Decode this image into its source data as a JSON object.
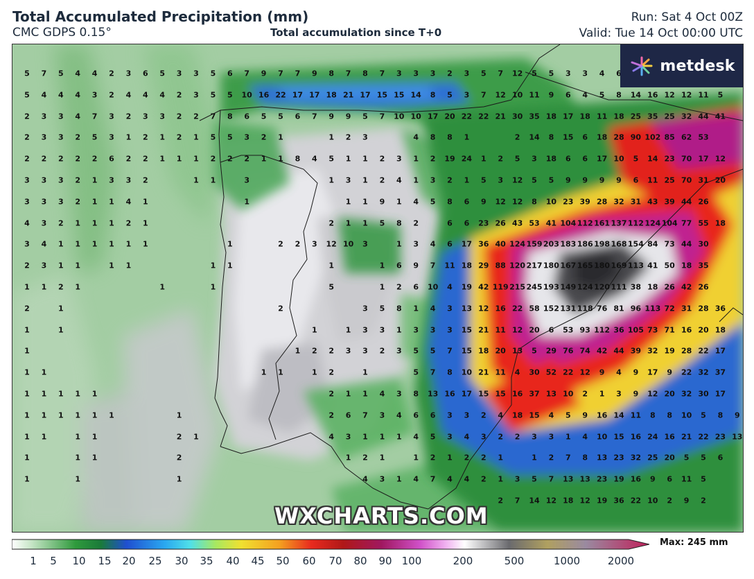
{
  "header": {
    "title": "Total Accumulated Precipitation (mm)",
    "model": "CMC GDPS 0.15°",
    "subtitle": "Total accumulation since T+0",
    "run": "Run: Sat 4 Oct 00Z",
    "valid": "Valid: Tue 14 Oct 00:00 UTC"
  },
  "branding": {
    "logo_text": "metdesk",
    "watermark": "WXCHARTS.COM",
    "logo_bg": "#1e2746"
  },
  "legend": {
    "ticks": [
      "1",
      "5",
      "10",
      "15",
      "20",
      "25",
      "30",
      "35",
      "40",
      "45",
      "50",
      "60",
      "70",
      "80",
      "90",
      "100",
      "200",
      "500",
      "1000",
      "2000"
    ],
    "max_label": "Max: 245 mm"
  },
  "grid_values": [
    [
      "5",
      "7",
      "5",
      "4",
      "4",
      "2",
      "3",
      "6",
      "5",
      "3",
      "3",
      "5",
      "6",
      "7",
      "9",
      "7",
      "7",
      "9",
      "8",
      "7",
      "8",
      "7",
      "3",
      "3",
      "3",
      "2",
      "3",
      "5",
      "7",
      "12",
      "5",
      "5",
      "3",
      "3",
      "4",
      "6",
      "",
      "",
      "",
      "",
      ""
    ],
    [
      "5",
      "4",
      "4",
      "4",
      "3",
      "2",
      "4",
      "4",
      "4",
      "2",
      "3",
      "5",
      "5",
      "10",
      "16",
      "22",
      "17",
      "17",
      "18",
      "21",
      "17",
      "15",
      "15",
      "14",
      "8",
      "5",
      "3",
      "7",
      "12",
      "10",
      "11",
      "9",
      "6",
      "4",
      "5",
      "8",
      "14",
      "16",
      "12",
      "12",
      "11",
      "5"
    ],
    [
      "2",
      "3",
      "3",
      "4",
      "7",
      "3",
      "2",
      "3",
      "3",
      "2",
      "2",
      "7",
      "8",
      "6",
      "5",
      "5",
      "6",
      "7",
      "9",
      "9",
      "5",
      "7",
      "10",
      "10",
      "17",
      "20",
      "22",
      "22",
      "21",
      "30",
      "35",
      "18",
      "17",
      "18",
      "11",
      "18",
      "25",
      "35",
      "25",
      "32",
      "44",
      "41"
    ],
    [
      "2",
      "3",
      "3",
      "2",
      "5",
      "3",
      "1",
      "2",
      "1",
      "2",
      "1",
      "5",
      "5",
      "3",
      "2",
      "1",
      "",
      "",
      "1",
      "2",
      "3",
      "",
      "",
      "4",
      "8",
      "8",
      "1",
      "",
      "",
      "2",
      "14",
      "8",
      "15",
      "6",
      "18",
      "28",
      "90",
      "102",
      "85",
      "62",
      "53"
    ],
    [
      "2",
      "2",
      "2",
      "2",
      "2",
      "6",
      "2",
      "2",
      "1",
      "1",
      "1",
      "2",
      "2",
      "2",
      "1",
      "1",
      "8",
      "4",
      "5",
      "1",
      "1",
      "2",
      "3",
      "1",
      "2",
      "19",
      "24",
      "1",
      "2",
      "5",
      "3",
      "18",
      "6",
      "6",
      "17",
      "10",
      "5",
      "14",
      "23",
      "70",
      "17",
      "12"
    ],
    [
      "3",
      "3",
      "3",
      "2",
      "1",
      "3",
      "3",
      "2",
      "",
      "",
      "1",
      "1",
      "",
      "3",
      "",
      "",
      "",
      "",
      "1",
      "3",
      "1",
      "2",
      "4",
      "1",
      "3",
      "2",
      "1",
      "5",
      "3",
      "12",
      "5",
      "5",
      "9",
      "9",
      "9",
      "9",
      "6",
      "11",
      "25",
      "70",
      "31",
      "20"
    ],
    [
      "3",
      "3",
      "3",
      "2",
      "1",
      "1",
      "4",
      "1",
      "",
      "",
      "",
      "",
      "",
      "1",
      "",
      "",
      "",
      "",
      "",
      "1",
      "1",
      "9",
      "1",
      "4",
      "5",
      "8",
      "6",
      "9",
      "12",
      "12",
      "8",
      "10",
      "23",
      "39",
      "28",
      "32",
      "31",
      "43",
      "39",
      "44",
      "26"
    ],
    [
      "4",
      "3",
      "2",
      "1",
      "1",
      "1",
      "2",
      "1",
      "",
      "",
      "",
      "",
      "",
      "",
      "",
      "",
      "",
      "",
      "2",
      "1",
      "1",
      "5",
      "8",
      "2",
      "",
      "6",
      "6",
      "23",
      "26",
      "43",
      "53",
      "41",
      "104",
      "112",
      "161",
      "137",
      "112",
      "124",
      "104",
      "77",
      "55",
      "18"
    ],
    [
      "3",
      "4",
      "1",
      "1",
      "1",
      "1",
      "1",
      "1",
      "",
      "",
      "",
      "",
      "1",
      "",
      "",
      "2",
      "2",
      "3",
      "12",
      "10",
      "3",
      "",
      "1",
      "3",
      "4",
      "6",
      "17",
      "36",
      "40",
      "124",
      "159",
      "203",
      "183",
      "186",
      "198",
      "168",
      "154",
      "84",
      "73",
      "44",
      "30"
    ],
    [
      "2",
      "3",
      "1",
      "1",
      "",
      "1",
      "1",
      "",
      "",
      "",
      "",
      "1",
      "1",
      "",
      "",
      "",
      "",
      "",
      "1",
      "",
      "",
      "1",
      "6",
      "9",
      "7",
      "11",
      "18",
      "29",
      "88",
      "120",
      "217",
      "180",
      "167",
      "165",
      "180",
      "169",
      "113",
      "41",
      "50",
      "18",
      "35"
    ],
    [
      "1",
      "1",
      "2",
      "1",
      "",
      "",
      "",
      "",
      "1",
      "",
      "",
      "1",
      "",
      "",
      "",
      "",
      "",
      "",
      "5",
      "",
      "",
      "1",
      "2",
      "6",
      "10",
      "4",
      "19",
      "42",
      "119",
      "215",
      "245",
      "193",
      "149",
      "124",
      "120",
      "111",
      "38",
      "18",
      "26",
      "42",
      "26"
    ],
    [
      "2",
      "",
      "1",
      "",
      "",
      "",
      "",
      "",
      "",
      "",
      "",
      "",
      "",
      "",
      "",
      "2",
      "",
      "",
      "",
      "",
      "3",
      "5",
      "8",
      "1",
      "4",
      "3",
      "13",
      "12",
      "16",
      "22",
      "58",
      "152",
      "131",
      "118",
      "76",
      "81",
      "96",
      "113",
      "72",
      "31",
      "28",
      "36"
    ],
    [
      "1",
      "",
      "1",
      "",
      "",
      "",
      "",
      "",
      "",
      "",
      "",
      "",
      "",
      "",
      "",
      "",
      "",
      "1",
      "",
      "1",
      "3",
      "3",
      "1",
      "3",
      "3",
      "3",
      "15",
      "21",
      "11",
      "12",
      "20",
      "6",
      "53",
      "93",
      "112",
      "36",
      "105",
      "73",
      "71",
      "16",
      "20",
      "18"
    ],
    [
      "1",
      "",
      "",
      "",
      "",
      "",
      "",
      "",
      "",
      "",
      "",
      "",
      "",
      "",
      "",
      "",
      "1",
      "2",
      "2",
      "3",
      "3",
      "2",
      "3",
      "5",
      "5",
      "7",
      "15",
      "18",
      "20",
      "13",
      "5",
      "29",
      "76",
      "74",
      "42",
      "44",
      "39",
      "32",
      "19",
      "28",
      "22",
      "17"
    ],
    [
      "1",
      "1",
      "",
      "",
      "",
      "",
      "",
      "",
      "",
      "",
      "",
      "",
      "",
      "",
      "1",
      "1",
      "",
      "1",
      "2",
      "",
      "1",
      "",
      "",
      "5",
      "7",
      "8",
      "10",
      "21",
      "11",
      "4",
      "30",
      "52",
      "22",
      "12",
      "9",
      "4",
      "9",
      "17",
      "9",
      "22",
      "32",
      "37"
    ],
    [
      "1",
      "1",
      "1",
      "1",
      "1",
      "",
      "",
      "",
      "",
      "",
      "",
      "",
      "",
      "",
      "",
      "",
      "",
      "",
      "2",
      "1",
      "1",
      "4",
      "3",
      "8",
      "13",
      "16",
      "17",
      "15",
      "15",
      "16",
      "37",
      "13",
      "10",
      "2",
      "1",
      "3",
      "9",
      "12",
      "20",
      "32",
      "30",
      "17"
    ],
    [
      "1",
      "1",
      "1",
      "1",
      "1",
      "1",
      "",
      "",
      "",
      "1",
      "",
      "",
      "",
      "",
      "",
      "",
      "",
      "",
      "2",
      "6",
      "7",
      "3",
      "4",
      "6",
      "6",
      "3",
      "3",
      "2",
      "4",
      "18",
      "15",
      "4",
      "5",
      "9",
      "16",
      "14",
      "11",
      "8",
      "8",
      "10",
      "5",
      "8",
      "9"
    ],
    [
      "1",
      "1",
      "",
      "1",
      "1",
      "",
      "",
      "",
      "",
      "2",
      "1",
      "",
      "",
      "",
      "",
      "",
      "",
      "",
      "4",
      "3",
      "1",
      "1",
      "1",
      "4",
      "5",
      "3",
      "4",
      "3",
      "2",
      "2",
      "3",
      "3",
      "1",
      "4",
      "10",
      "15",
      "16",
      "24",
      "16",
      "21",
      "22",
      "23",
      "13"
    ],
    [
      "1",
      "",
      "",
      "1",
      "1",
      "",
      "",
      "",
      "",
      "2",
      "",
      "",
      "",
      "",
      "",
      "",
      "",
      "",
      "",
      "1",
      "2",
      "1",
      "",
      "1",
      "2",
      "1",
      "2",
      "2",
      "1",
      "",
      "1",
      "2",
      "7",
      "8",
      "13",
      "23",
      "32",
      "25",
      "20",
      "5",
      "5",
      "6"
    ],
    [
      "1",
      "",
      "",
      "1",
      "",
      "",
      "",
      "",
      "",
      "1",
      "",
      "",
      "",
      "",
      "",
      "",
      "",
      "",
      "",
      "",
      "4",
      "3",
      "1",
      "4",
      "7",
      "4",
      "4",
      "2",
      "1",
      "3",
      "5",
      "7",
      "13",
      "13",
      "23",
      "19",
      "16",
      "9",
      "6",
      "11",
      "5",
      ""
    ],
    [
      "",
      "",
      "",
      "",
      "",
      "",
      "",
      "",
      "",
      "",
      "",
      "",
      "",
      "",
      "",
      "",
      "",
      "",
      "",
      "",
      "",
      "",
      "",
      "",
      "",
      "",
      "",
      "",
      "2",
      "7",
      "14",
      "12",
      "18",
      "12",
      "19",
      "36",
      "22",
      "10",
      "2",
      "9",
      "2",
      ""
    ]
  ]
}
